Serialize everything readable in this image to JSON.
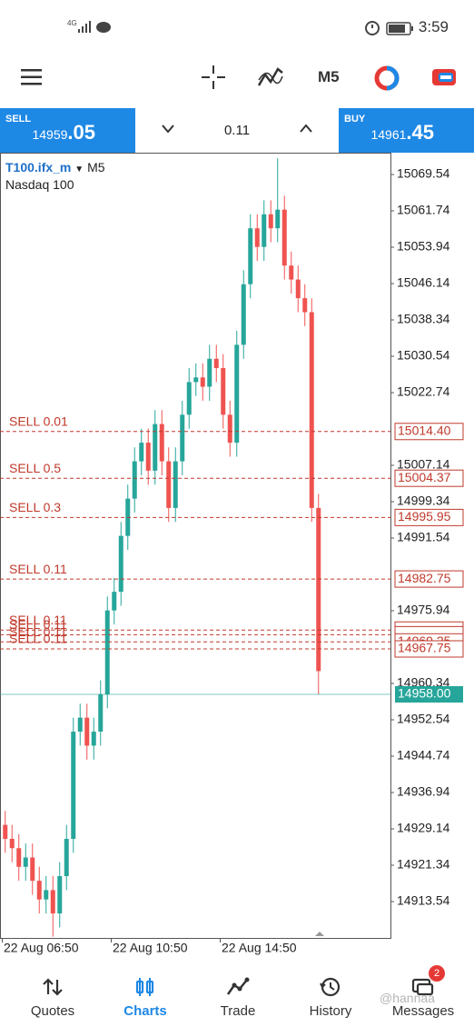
{
  "status_bar": {
    "network": "4G",
    "time": "3:59"
  },
  "toolbar": {
    "timeframe": "M5"
  },
  "order_panel": {
    "sell_label": "SELL",
    "sell_main": "14959",
    "sell_small": ".05",
    "lot": "0.11",
    "buy_label": "BUY",
    "buy_main": "14961",
    "buy_small": ".45"
  },
  "chart": {
    "type": "candlestick",
    "symbol": "T100.ifx_m",
    "timeframe": "M5",
    "description": "Nasdaq 100",
    "ylim": [
      14905.74,
      15073.83
    ],
    "yticks": [
      15069.54,
      15061.74,
      15053.94,
      15046.14,
      15038.34,
      15030.54,
      15022.74,
      15007.14,
      14999.34,
      14991.54,
      14975.94,
      14960.34,
      14952.54,
      14944.74,
      14936.94,
      14929.14,
      14921.34,
      14913.54
    ],
    "categories": [
      "22 Aug 06:50",
      null,
      null,
      null,
      null,
      null,
      null,
      null,
      null,
      null,
      null,
      null,
      null,
      null,
      null,
      null,
      "22 Aug 10:50",
      null,
      null,
      null,
      null,
      null,
      null,
      null,
      null,
      null,
      null,
      null,
      null,
      null,
      null,
      null,
      "22 Aug 14:50",
      null,
      null,
      null,
      null,
      null,
      null,
      null,
      null,
      null,
      null,
      null,
      null,
      null,
      null
    ],
    "open": [
      14930,
      14927,
      14925,
      14921,
      14923,
      14918,
      14914,
      14916,
      14911,
      14919,
      14927,
      14950,
      14953,
      14947,
      14950,
      14958,
      14976,
      14980,
      14992,
      15000,
      15008,
      15012,
      15006,
      15016,
      15008,
      14998,
      15008,
      15018,
      15025,
      15026,
      15024,
      15030,
      15028,
      15018,
      15012,
      15033,
      15046,
      15058,
      15054,
      15061,
      15058,
      15062,
      15050,
      15047,
      15043,
      15040,
      14998
    ],
    "high": [
      14933,
      14930,
      14928,
      14926,
      14926,
      14921,
      14919,
      14919,
      14922,
      14930,
      14953,
      14956,
      14956,
      14953,
      14961,
      14979,
      14983,
      14995,
      15003,
      15011,
      15015,
      15015,
      15019,
      15019,
      15011,
      15011,
      15021,
      15028,
      15029,
      15029,
      15033,
      15033,
      15031,
      15021,
      15036,
      15049,
      15061,
      15061,
      15064,
      15064,
      15073,
      15065,
      15053,
      15050,
      15046,
      15043,
      15001
    ],
    "low": [
      14924,
      14922,
      14918,
      14918,
      14915,
      14911,
      14911,
      14906,
      14908,
      14916,
      14924,
      14947,
      14944,
      14944,
      14947,
      14955,
      14973,
      14977,
      14989,
      14997,
      15005,
      15003,
      15003,
      15005,
      14995,
      14995,
      15005,
      15015,
      15022,
      15021,
      15021,
      15025,
      15015,
      15009,
      15009,
      15030,
      15043,
      15051,
      15051,
      15055,
      15055,
      15047,
      15044,
      15040,
      15037,
      14995,
      14958
    ],
    "close": [
      14927,
      14925,
      14921,
      14923,
      14918,
      14914,
      14916,
      14911,
      14919,
      14927,
      14950,
      14953,
      14947,
      14950,
      14958,
      14976,
      14980,
      14992,
      15000,
      15008,
      15012,
      15006,
      15016,
      15008,
      14998,
      15008,
      15018,
      15025,
      15026,
      15024,
      15030,
      15028,
      15018,
      15012,
      15033,
      15046,
      15058,
      15054,
      15061,
      15058,
      15062,
      15050,
      15047,
      15043,
      15040,
      14998,
      14963
    ],
    "up_color": "#26a69a",
    "down_color": "#ef5350",
    "orders": [
      {
        "label": "SELL 0.01",
        "price": 15014.4,
        "price_label": "15014.40"
      },
      {
        "label": "SELL 0.5",
        "price": 15004.37,
        "price_label": "15004.37"
      },
      {
        "label": "SELL 0.3",
        "price": 14995.95,
        "price_label": "14995.95"
      },
      {
        "label": "SELL 0.11",
        "price": 14982.75,
        "price_label": "14982.75"
      },
      {
        "label": "SELL 0.11",
        "price": 14971.8
      },
      {
        "label": "SELL 0.11",
        "price": 14970.8
      },
      {
        "label": "SELL 0.11",
        "price": 14969.25,
        "price_label": "14969.25"
      },
      {
        "label": "SELL 0.11",
        "price": 14967.75,
        "price_label": "14967.75"
      }
    ],
    "order_color": "#c0392b",
    "current": {
      "price": 14958,
      "label": "14958.00",
      "color": "#26a69a"
    }
  },
  "bottom_nav": {
    "items": [
      "Quotes",
      "Charts",
      "Trade",
      "History",
      "Messages"
    ],
    "active": 1,
    "badge": "2"
  },
  "watermark": "@hannaa"
}
